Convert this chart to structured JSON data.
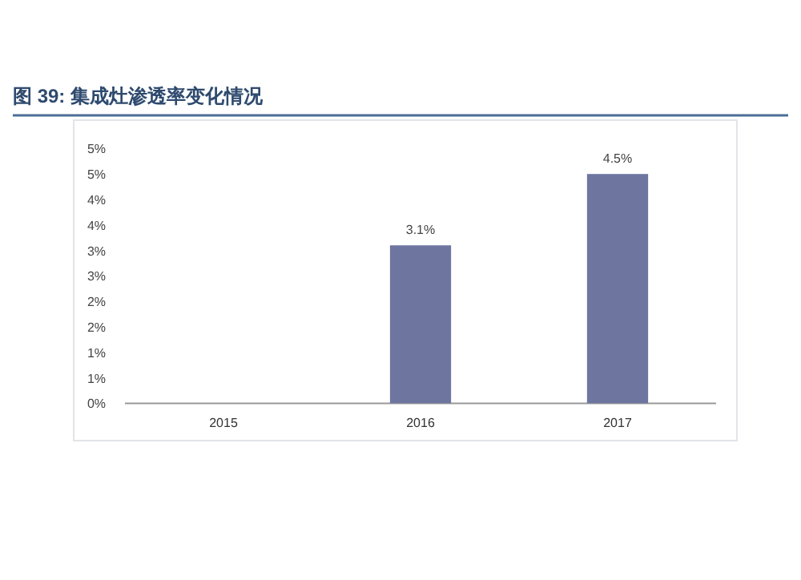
{
  "chart_data": {
    "type": "bar",
    "title": "图 39: 集成灶渗透率变化情况",
    "categories": [
      "2015",
      "2016",
      "2017"
    ],
    "values": [
      null,
      3.1,
      4.5
    ],
    "value_labels": [
      null,
      "3.1%",
      "4.5%"
    ],
    "color": "#6e76a0",
    "ylim": [
      0,
      5
    ],
    "yticks": [
      {
        "value": 0,
        "label": "0%"
      },
      {
        "value": 0.5,
        "label": "1%"
      },
      {
        "value": 1,
        "label": "1%"
      },
      {
        "value": 1.5,
        "label": "2%"
      },
      {
        "value": 2,
        "label": "2%"
      },
      {
        "value": 2.5,
        "label": "3%"
      },
      {
        "value": 3,
        "label": "3%"
      },
      {
        "value": 3.5,
        "label": "4%"
      },
      {
        "value": 4,
        "label": "4%"
      },
      {
        "value": 4.5,
        "label": "5%"
      },
      {
        "value": 5,
        "label": "5%"
      }
    ]
  }
}
